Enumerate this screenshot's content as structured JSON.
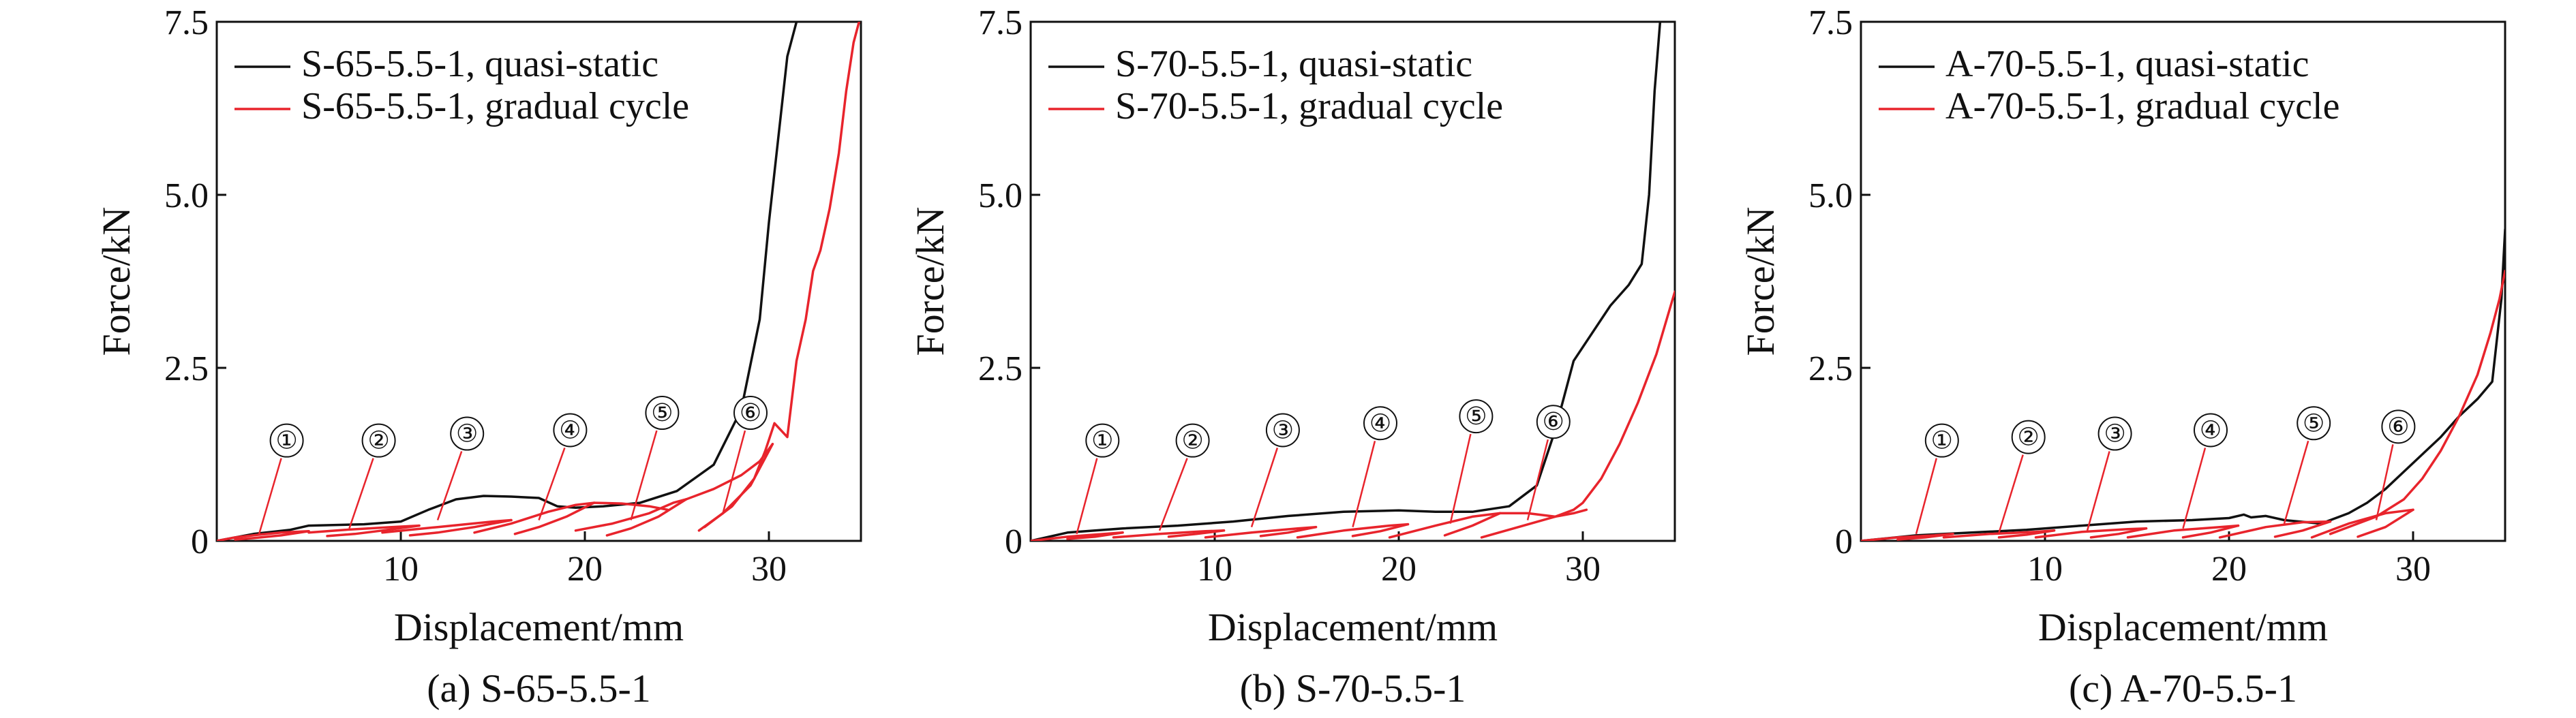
{
  "colors": {
    "quasi_static": "#111111",
    "gradual_cycle": "#e8242c"
  },
  "chart_data": [
    {
      "type": "line",
      "caption": "(a) S-65-5.5-1",
      "xlabel": "Displacement/mm",
      "ylabel": "Force/kN",
      "xlim": [
        0,
        35
      ],
      "ylim": [
        0,
        7.5
      ],
      "xticks": [
        10,
        20,
        30
      ],
      "yticks": [
        0,
        2.5,
        5.0,
        7.5
      ],
      "ytick_labels": [
        "0",
        "2.5",
        "5.0",
        "7.5"
      ],
      "legend": [
        "S-65-5.5-1, quasi-static",
        "S-65-5.5-1, gradual cycle"
      ],
      "legend_position": "top-left",
      "annotations": [
        {
          "label": "①",
          "text_x": 3.8,
          "text_y": 1.45,
          "point_x": 2.3,
          "point_y": 0.1
        },
        {
          "label": "②",
          "text_x": 8.8,
          "text_y": 1.45,
          "point_x": 7.2,
          "point_y": 0.18
        },
        {
          "label": "③",
          "text_x": 13.6,
          "text_y": 1.55,
          "point_x": 12.0,
          "point_y": 0.3
        },
        {
          "label": "④",
          "text_x": 19.2,
          "text_y": 1.6,
          "point_x": 17.5,
          "point_y": 0.3
        },
        {
          "label": "⑤",
          "text_x": 24.2,
          "text_y": 1.85,
          "point_x": 22.5,
          "point_y": 0.3
        },
        {
          "label": "⑥",
          "text_x": 29.0,
          "text_y": 1.85,
          "point_x": 27.5,
          "point_y": 0.4
        }
      ],
      "series": [
        {
          "name": "S-65-5.5-1, quasi-static",
          "color": "#111111",
          "x": [
            0,
            2,
            4,
            5,
            8,
            10,
            11.5,
            13,
            14.5,
            16,
            17.5,
            18.5,
            19.5,
            21,
            23,
            25,
            27,
            28.5,
            29.5,
            30,
            30.5,
            31,
            31.5
          ],
          "y": [
            0,
            0.1,
            0.16,
            0.22,
            0.24,
            0.28,
            0.45,
            0.6,
            0.65,
            0.64,
            0.62,
            0.5,
            0.48,
            0.5,
            0.55,
            0.72,
            1.1,
            1.9,
            3.2,
            4.6,
            5.8,
            7.0,
            7.5
          ]
        },
        {
          "name": "S-65-5.5-1, gradual cycle",
          "color": "#e8242c",
          "segments": [
            {
              "x": [
                0,
                1,
                2.3,
                3.5,
                5
              ],
              "y": [
                0,
                0.05,
                0.09,
                0.12,
                0.14
              ]
            },
            {
              "x": [
                5,
                3.5,
                2,
                1
              ],
              "y": [
                0.14,
                0.08,
                0.04,
                0.02
              ]
            },
            {
              "x": [
                5,
                7,
                9.5,
                11
              ],
              "y": [
                0.12,
                0.16,
                0.2,
                0.22
              ]
            },
            {
              "x": [
                11,
                9,
                7.5,
                6
              ],
              "y": [
                0.22,
                0.15,
                0.1,
                0.07
              ]
            },
            {
              "x": [
                9,
                12,
                15,
                16
              ],
              "y": [
                0.12,
                0.2,
                0.28,
                0.3
              ]
            },
            {
              "x": [
                16,
                14,
                12,
                10.5
              ],
              "y": [
                0.3,
                0.2,
                0.12,
                0.08
              ]
            },
            {
              "x": [
                14,
                16,
                18,
                19.5,
                20.5
              ],
              "y": [
                0.12,
                0.25,
                0.42,
                0.52,
                0.55
              ]
            },
            {
              "x": [
                20.5,
                19,
                17.5,
                16.2
              ],
              "y": [
                0.55,
                0.35,
                0.2,
                0.1
              ]
            },
            {
              "x": [
                20.5,
                22,
                23.5,
                24.5
              ],
              "y": [
                0.55,
                0.54,
                0.5,
                0.45
              ]
            },
            {
              "x": [
                19.5,
                21.5,
                23.5,
                24.8,
                25.5
              ],
              "y": [
                0.15,
                0.25,
                0.4,
                0.55,
                0.6
              ]
            },
            {
              "x": [
                25.5,
                24,
                22.5,
                21.2
              ],
              "y": [
                0.6,
                0.35,
                0.18,
                0.08
              ]
            },
            {
              "x": [
                25.5,
                27,
                28.5,
                29.5,
                30.2
              ],
              "y": [
                0.6,
                0.75,
                0.95,
                1.15,
                1.4
              ]
            },
            {
              "x": [
                30.2,
                29,
                27.5,
                26.2
              ],
              "y": [
                1.4,
                0.8,
                0.4,
                0.15
              ]
            },
            {
              "x": [
                26.5,
                28,
                29.2,
                29.8,
                30.3,
                31.0,
                31.5,
                32.0,
                32.4,
                32.8,
                33.3,
                33.8,
                34.2,
                34.6,
                34.9
              ],
              "y": [
                0.2,
                0.5,
                0.9,
                1.3,
                1.7,
                1.5,
                2.6,
                3.2,
                3.9,
                4.2,
                4.8,
                5.6,
                6.5,
                7.2,
                7.5
              ]
            }
          ]
        }
      ]
    },
    {
      "type": "line",
      "caption": "(b) S-70-5.5-1",
      "xlabel": "Displacement/mm",
      "ylabel": "Force/kN",
      "xlim": [
        0,
        35
      ],
      "ylim": [
        0,
        7.5
      ],
      "xticks": [
        10,
        20,
        30
      ],
      "yticks": [
        0,
        2.5,
        5.0,
        7.5
      ],
      "ytick_labels": [
        "0",
        "2.5",
        "5.0",
        "7.5"
      ],
      "legend": [
        "S-70-5.5-1, quasi-static",
        "S-70-5.5-1, gradual cycle"
      ],
      "legend_position": "top-left",
      "annotations": [
        {
          "label": "①",
          "text_x": 3.9,
          "text_y": 1.45,
          "point_x": 2.5,
          "point_y": 0.1
        },
        {
          "label": "②",
          "text_x": 8.8,
          "text_y": 1.45,
          "point_x": 7.0,
          "point_y": 0.15
        },
        {
          "label": "③",
          "text_x": 13.7,
          "text_y": 1.6,
          "point_x": 12.0,
          "point_y": 0.2
        },
        {
          "label": "④",
          "text_x": 19.0,
          "text_y": 1.7,
          "point_x": 17.5,
          "point_y": 0.2
        },
        {
          "label": "⑤",
          "text_x": 24.2,
          "text_y": 1.8,
          "point_x": 22.8,
          "point_y": 0.25
        },
        {
          "label": "⑥",
          "text_x": 28.4,
          "text_y": 1.72,
          "point_x": 27.0,
          "point_y": 0.3
        }
      ],
      "series": [
        {
          "name": "S-70-5.5-1, quasi-static",
          "color": "#111111",
          "x": [
            0,
            2,
            5,
            8,
            11,
            14,
            17,
            20,
            22,
            24,
            26,
            27.5,
            28.5,
            29.5,
            30.5,
            31.5,
            32.5,
            33.2,
            33.6,
            33.9,
            34.2
          ],
          "y": [
            0,
            0.12,
            0.18,
            0.22,
            0.28,
            0.36,
            0.42,
            0.44,
            0.42,
            0.42,
            0.5,
            0.8,
            1.6,
            2.6,
            3.0,
            3.4,
            3.7,
            4.0,
            5.0,
            6.5,
            7.5
          ]
        },
        {
          "name": "S-70-5.5-1, gradual cycle",
          "color": "#e8242c",
          "segments": [
            {
              "x": [
                0,
                2,
                4,
                5
              ],
              "y": [
                0,
                0.06,
                0.1,
                0.12
              ]
            },
            {
              "x": [
                5,
                3.5,
                2
              ],
              "y": [
                0.12,
                0.06,
                0.03
              ]
            },
            {
              "x": [
                4.5,
                7,
                9.5,
                10.5
              ],
              "y": [
                0.05,
                0.1,
                0.14,
                0.15
              ]
            },
            {
              "x": [
                10.5,
                9,
                7.5
              ],
              "y": [
                0.15,
                0.1,
                0.06
              ]
            },
            {
              "x": [
                9.5,
                12,
                14.5,
                15.5
              ],
              "y": [
                0.05,
                0.12,
                0.18,
                0.2
              ]
            },
            {
              "x": [
                15.5,
                14,
                12.5
              ],
              "y": [
                0.2,
                0.12,
                0.07
              ]
            },
            {
              "x": [
                14.5,
                17,
                19.5,
                20.5
              ],
              "y": [
                0.05,
                0.15,
                0.22,
                0.24
              ]
            },
            {
              "x": [
                20.5,
                19,
                17.5
              ],
              "y": [
                0.24,
                0.14,
                0.07
              ]
            },
            {
              "x": [
                19.5,
                22,
                24,
                25.5
              ],
              "y": [
                0.05,
                0.22,
                0.35,
                0.4
              ]
            },
            {
              "x": [
                25.5,
                24,
                22.5
              ],
              "y": [
                0.4,
                0.22,
                0.08
              ]
            },
            {
              "x": [
                25.5,
                27,
                28.5,
                29.5,
                30.2
              ],
              "y": [
                0.4,
                0.4,
                0.35,
                0.4,
                0.45
              ]
            },
            {
              "x": [
                24.5,
                26.5,
                28.5,
                29.5,
                30.0,
                31.0,
                32.0,
                33.0,
                34.0,
                35.0
              ],
              "y": [
                0.05,
                0.2,
                0.35,
                0.45,
                0.55,
                0.9,
                1.4,
                2.0,
                2.7,
                3.6
              ]
            }
          ]
        }
      ]
    },
    {
      "type": "line",
      "caption": "(c) A-70-5.5-1",
      "xlabel": "Displacement/mm",
      "ylabel": "Force/kN",
      "xlim": [
        0,
        35
      ],
      "ylim": [
        0,
        7.5
      ],
      "xticks": [
        10,
        20,
        30
      ],
      "yticks": [
        0,
        2.5,
        5.0,
        7.5
      ],
      "ytick_labels": [
        "0",
        "2.5",
        "5.0",
        "7.5"
      ],
      "legend": [
        "A-70-5.5-1, quasi-static",
        "A-70-5.5-1, gradual cycle"
      ],
      "legend_position": "top-left",
      "annotations": [
        {
          "label": "①",
          "text_x": 4.4,
          "text_y": 1.45,
          "point_x": 3.0,
          "point_y": 0.1
        },
        {
          "label": "②",
          "text_x": 9.1,
          "text_y": 1.5,
          "point_x": 7.5,
          "point_y": 0.12
        },
        {
          "label": "③",
          "text_x": 13.8,
          "text_y": 1.55,
          "point_x": 12.3,
          "point_y": 0.15
        },
        {
          "label": "④",
          "text_x": 19.0,
          "text_y": 1.6,
          "point_x": 17.5,
          "point_y": 0.18
        },
        {
          "label": "⑤",
          "text_x": 24.6,
          "text_y": 1.7,
          "point_x": 23.0,
          "point_y": 0.25
        },
        {
          "label": "⑥",
          "text_x": 29.2,
          "text_y": 1.65,
          "point_x": 28.0,
          "point_y": 0.3
        }
      ],
      "series": [
        {
          "name": "A-70-5.5-1, quasi-static",
          "color": "#111111",
          "x": [
            0,
            3,
            6,
            9,
            12,
            15,
            18,
            20,
            20.8,
            21.2,
            22,
            23,
            25,
            26.5,
            27.5,
            28.5,
            29.5,
            30.5,
            31.5,
            32.5,
            33.5,
            34.3,
            34.8,
            35
          ],
          "y": [
            0,
            0.08,
            0.12,
            0.16,
            0.22,
            0.28,
            0.3,
            0.33,
            0.38,
            0.34,
            0.36,
            0.3,
            0.25,
            0.4,
            0.55,
            0.75,
            1.0,
            1.25,
            1.5,
            1.8,
            2.05,
            2.3,
            3.5,
            4.5
          ]
        },
        {
          "name": "A-70-5.5-1, gradual cycle",
          "color": "#e8242c",
          "segments": [
            {
              "x": [
                0,
                2,
                4,
                5
              ],
              "y": [
                0,
                0.05,
                0.08,
                0.1
              ]
            },
            {
              "x": [
                5,
                3.5,
                2
              ],
              "y": [
                0.1,
                0.05,
                0.02
              ]
            },
            {
              "x": [
                4.5,
                7,
                9.5,
                10.5
              ],
              "y": [
                0.05,
                0.1,
                0.13,
                0.15
              ]
            },
            {
              "x": [
                10.5,
                9,
                7.5
              ],
              "y": [
                0.15,
                0.09,
                0.05
              ]
            },
            {
              "x": [
                9.5,
                12,
                14.5,
                15.5
              ],
              "y": [
                0.05,
                0.13,
                0.17,
                0.18
              ]
            },
            {
              "x": [
                15.5,
                14,
                12.5
              ],
              "y": [
                0.18,
                0.1,
                0.05
              ]
            },
            {
              "x": [
                14.5,
                17,
                19.5,
                20.5
              ],
              "y": [
                0.05,
                0.15,
                0.2,
                0.22
              ]
            },
            {
              "x": [
                20.5,
                19,
                17.5
              ],
              "y": [
                0.22,
                0.12,
                0.05
              ]
            },
            {
              "x": [
                19.5,
                22,
                24,
                25.5
              ],
              "y": [
                0.05,
                0.2,
                0.27,
                0.28
              ]
            },
            {
              "x": [
                25.5,
                24,
                22.5
              ],
              "y": [
                0.28,
                0.15,
                0.06
              ]
            },
            {
              "x": [
                24.5,
                26.5,
                28.5,
                30.0
              ],
              "y": [
                0.05,
                0.25,
                0.4,
                0.45
              ]
            },
            {
              "x": [
                30.0,
                28.5,
                27.0
              ],
              "y": [
                0.45,
                0.2,
                0.06
              ]
            },
            {
              "x": [
                25.5,
                28,
                29.5,
                30.5,
                31.5,
                32.5,
                33.5,
                34.2,
                34.7,
                35.0
              ],
              "y": [
                0.1,
                0.35,
                0.6,
                0.9,
                1.3,
                1.8,
                2.4,
                3.0,
                3.5,
                3.9
              ]
            }
          ]
        }
      ]
    }
  ]
}
